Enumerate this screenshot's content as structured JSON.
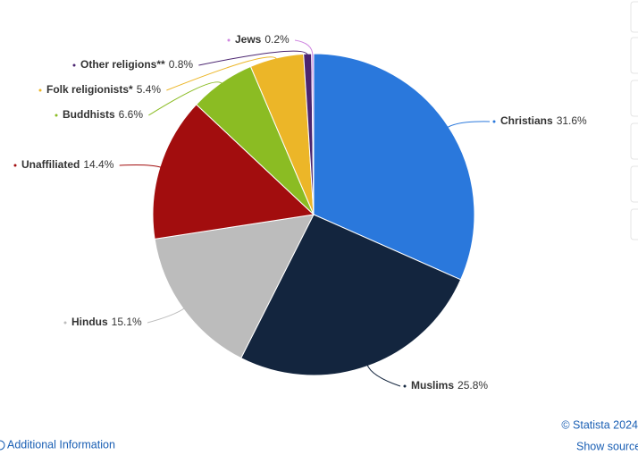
{
  "chart_data": {
    "type": "pie",
    "categories": [
      "Christians",
      "Muslims",
      "Hindus",
      "Unaffiliated",
      "Buddhists",
      "Folk religionists*",
      "Other religions**",
      "Jews"
    ],
    "values": [
      31.6,
      25.8,
      15.1,
      14.4,
      6.6,
      5.4,
      0.8,
      0.2
    ],
    "value_labels": [
      "31.6%",
      "25.8%",
      "15.1%",
      "14.4%",
      "6.6%",
      "5.4%",
      "0.8%",
      "0.2%"
    ],
    "colors": [
      "#2a78dc",
      "#13253e",
      "#bcbcbc",
      "#a20d0e",
      "#8bbc23",
      "#ecb628",
      "#4b2570",
      "#cf86e0"
    ]
  },
  "footer": {
    "copyright": "© Statista 2024",
    "additional_info": "Additional Information",
    "show_source": "Show source"
  }
}
